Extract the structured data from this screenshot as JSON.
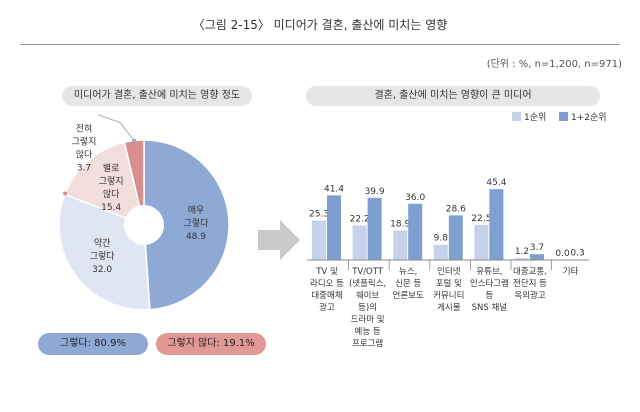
{
  "figure": {
    "title": "〈그림 2-15〉 미디어가 결혼, 출산에 미치는 영향",
    "unit_note": "(단위 : %, n=1,200, n=971)"
  },
  "colors": {
    "pie_very": "#8fa9d4",
    "pie_somewhat": "#dfe6f1",
    "pie_not_really": "#f3dede",
    "pie_not_at_all": "#d98e8e",
    "bar_rank1": "#c5d3ea",
    "bar_rank12": "#7f9fd0",
    "arrow": "#c9c9c9"
  },
  "chart_data": [
    {
      "type": "pie",
      "title": "미디어가 결혼, 출산에 미치는 영향 정도",
      "slices": [
        {
          "label_lines": [
            "매우",
            "그렇다"
          ],
          "value": 48.9,
          "value_label": "48.9"
        },
        {
          "label_lines": [
            "약간",
            "그렇다"
          ],
          "value": 32.0,
          "value_label": "32.0"
        },
        {
          "label_lines": [
            "별로",
            "그렇지",
            "않다"
          ],
          "value": 15.4,
          "value_label": "15.4"
        },
        {
          "label_lines": [
            "전혀",
            "그렇지",
            "않다"
          ],
          "value": 3.7,
          "value_label": "3.7"
        }
      ],
      "summary": {
        "positive": "그렇다: 80.9%",
        "negative": "그렇지 않다: 19.1%"
      }
    },
    {
      "type": "bar",
      "title": "결혼, 출산에 미치는 영향이 큰 미디어",
      "legend_position": "top-right",
      "ylim": [
        0,
        50
      ],
      "categories": [
        [
          "TV 및",
          "라디오 등",
          "대중매체",
          "광고"
        ],
        [
          "TV/OTT",
          "(넷플릭스,",
          "웨이브",
          "등)의",
          "드라마 및",
          "예능 등",
          "프로그램"
        ],
        [
          "뉴스,",
          "신문 등",
          "언론보도"
        ],
        [
          "인터넷",
          "포털 및",
          "커뮤니티",
          "게시물"
        ],
        [
          "유튜브,",
          "인스타그램",
          "등",
          "SNS 채널"
        ],
        [
          "대중교통,",
          "전단지 등",
          "옥외광고"
        ],
        [
          "기타"
        ]
      ],
      "series": [
        {
          "name": "1순위",
          "values": [
            25.3,
            22.2,
            18.9,
            9.8,
            22.5,
            1.2,
            0.0
          ],
          "labels": [
            "25.3",
            "22.2",
            "18.9",
            "9.8",
            "22.5",
            "1.2",
            "0.0"
          ]
        },
        {
          "name": "1+2순위",
          "values": [
            41.4,
            39.9,
            36.0,
            28.6,
            45.4,
            3.7,
            0.3
          ],
          "labels": [
            "41.4",
            "39.9",
            "36.0",
            "28.6",
            "45.4",
            "3.7",
            "0.3"
          ]
        }
      ]
    }
  ]
}
